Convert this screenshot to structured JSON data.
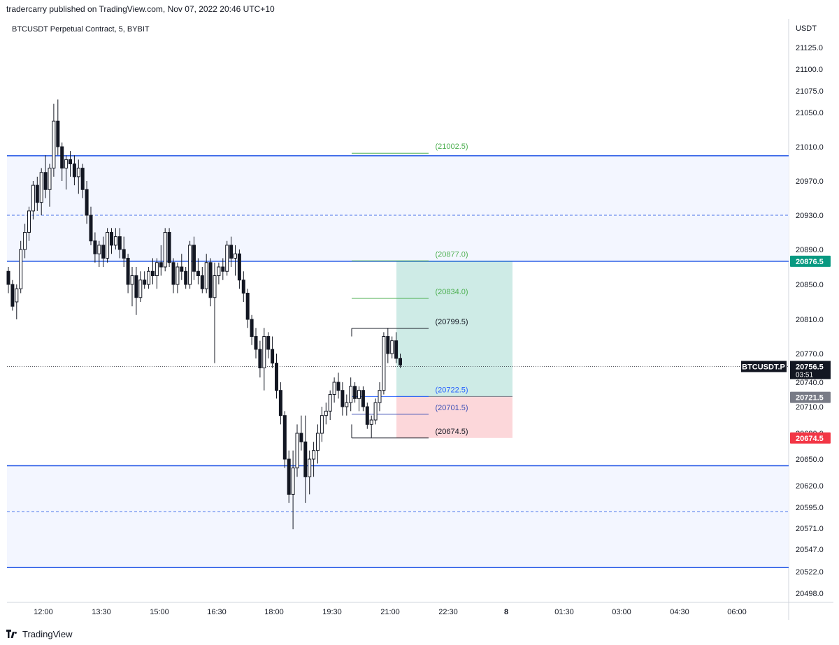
{
  "header": {
    "published": "tradercarry published on TradingView.com, Nov 07, 2022 20:46 UTC+10"
  },
  "footer": {
    "brand": "TradingView"
  },
  "chart_data": {
    "type": "candlestick",
    "title": "BTCUSDT Perpetual Contract, 5, BYBIT",
    "ylabel": "USDT",
    "ylim": [
      20490,
      21145
    ],
    "y_ticks": [
      "21125.0",
      "21100.0",
      "21075.0",
      "21050.0",
      "21010.0",
      "20970.0",
      "20930.0",
      "20890.0",
      "20850.0",
      "20810.0",
      "20770.0",
      "20740.0",
      "20710.0",
      "20680.0",
      "20650.0",
      "20620.0",
      "20595.0",
      "20571.0",
      "20547.0",
      "20522.0",
      "20498.0"
    ],
    "y_tick_values": [
      21125,
      21100,
      21075,
      21050,
      21010,
      20970,
      20930,
      20890,
      20850,
      20810,
      20770,
      20740,
      20710,
      20680,
      20650,
      20620,
      20595,
      20571,
      20547,
      20522,
      20498
    ],
    "x_ticks": [
      "12:00",
      "13:30",
      "15:00",
      "16:30",
      "18:00",
      "19:30",
      "21:00",
      "22:30",
      "8",
      "01:30",
      "03:00",
      "04:30",
      "06:00"
    ],
    "x_tick_bold": "8",
    "current_price": {
      "symbol": "BTCUSDT.P",
      "price": "20756.5",
      "countdown": "03:51",
      "value": 20756.5
    },
    "price_tags": [
      {
        "label": "20876.5",
        "value": 20876.5,
        "color": "#089981"
      },
      {
        "label": "20721.5",
        "value": 20721.5,
        "color": "#787b86"
      },
      {
        "label": "20674.5",
        "value": 20674.5,
        "color": "#f23645"
      }
    ],
    "zones": [
      {
        "top": 20999.5,
        "bottom": 20876.5,
        "mid": 20930,
        "color": "#1e53e5"
      },
      {
        "top": 20642.5,
        "bottom": 20526.5,
        "mid": 20590,
        "color": "#1e53e5"
      }
    ],
    "levels": [
      {
        "label": "(21002.5)",
        "value": 21002.5,
        "color": "#4caf50"
      },
      {
        "label": "(20877.0)",
        "value": 20877.0,
        "color": "#4caf50"
      },
      {
        "label": "(20834.0)",
        "value": 20834.0,
        "color": "#4caf50"
      },
      {
        "label": "(20799.5)",
        "value": 20799.5,
        "color": "#131722"
      },
      {
        "label": "(20722.5)",
        "value": 20722.5,
        "color": "#2962ff"
      },
      {
        "label": "(20701.5)",
        "value": 20701.5,
        "color": "#3f51b5"
      },
      {
        "label": "(20674.5)",
        "value": 20674.5,
        "color": "#131722"
      }
    ],
    "position": {
      "entry": 20722.5,
      "target": 20877.0,
      "stop": 20674.5
    },
    "candles_ohlc": [
      [
        20865,
        20870,
        20840,
        20850
      ],
      [
        20850,
        20855,
        20820,
        20825
      ],
      [
        20830,
        20850,
        20810,
        20845
      ],
      [
        20845,
        20900,
        20840,
        20890
      ],
      [
        20890,
        20920,
        20880,
        20910
      ],
      [
        20910,
        20940,
        20900,
        20935
      ],
      [
        20935,
        20970,
        20925,
        20965
      ],
      [
        20965,
        20975,
        20935,
        20945
      ],
      [
        20945,
        20985,
        20930,
        20980
      ],
      [
        20980,
        21000,
        20950,
        20960
      ],
      [
        20960,
        20990,
        20940,
        20985
      ],
      [
        20985,
        21060,
        20975,
        21040
      ],
      [
        21040,
        21065,
        21000,
        21010
      ],
      [
        21010,
        21015,
        20970,
        20985
      ],
      [
        20985,
        21000,
        20960,
        20995
      ],
      [
        20995,
        21005,
        20975,
        20990
      ],
      [
        20990,
        21000,
        20965,
        20975
      ],
      [
        20975,
        20995,
        20955,
        20985
      ],
      [
        20985,
        20990,
        20950,
        20960
      ],
      [
        20960,
        20970,
        20920,
        20930
      ],
      [
        20930,
        20940,
        20895,
        20900
      ],
      [
        20900,
        20910,
        20875,
        20885
      ],
      [
        20885,
        20900,
        20870,
        20895
      ],
      [
        20895,
        20905,
        20870,
        20880
      ],
      [
        20880,
        20915,
        20875,
        20910
      ],
      [
        20910,
        20915,
        20885,
        20895
      ],
      [
        20895,
        20915,
        20890,
        20905
      ],
      [
        20905,
        20915,
        20880,
        20890
      ],
      [
        20890,
        20905,
        20870,
        20880
      ],
      [
        20880,
        20885,
        20840,
        20850
      ],
      [
        20850,
        20870,
        20825,
        20860
      ],
      [
        20860,
        20870,
        20815,
        20835
      ],
      [
        20835,
        20865,
        20830,
        20855
      ],
      [
        20855,
        20865,
        20845,
        20850
      ],
      [
        20850,
        20870,
        20845,
        20865
      ],
      [
        20865,
        20880,
        20850,
        20860
      ],
      [
        20860,
        20880,
        20845,
        20875
      ],
      [
        20875,
        20895,
        20860,
        20870
      ],
      [
        20870,
        20915,
        20865,
        20910
      ],
      [
        20910,
        20915,
        20870,
        20875
      ],
      [
        20875,
        20880,
        20840,
        20850
      ],
      [
        20850,
        20875,
        20840,
        20870
      ],
      [
        20870,
        20885,
        20855,
        20865
      ],
      [
        20865,
        20870,
        20845,
        20850
      ],
      [
        20850,
        20900,
        20845,
        20895
      ],
      [
        20895,
        20905,
        20855,
        20865
      ],
      [
        20865,
        20880,
        20850,
        20860
      ],
      [
        20860,
        20870,
        20840,
        20845
      ],
      [
        20845,
        20885,
        20840,
        20875
      ],
      [
        20875,
        20880,
        20825,
        20835
      ],
      [
        20835,
        20875,
        20760,
        20860
      ],
      [
        20860,
        20875,
        20850,
        20870
      ],
      [
        20870,
        20880,
        20855,
        20865
      ],
      [
        20865,
        20900,
        20860,
        20895
      ],
      [
        20895,
        20905,
        20870,
        20880
      ],
      [
        20880,
        20895,
        20860,
        20885
      ],
      [
        20885,
        20890,
        20845,
        20855
      ],
      [
        20855,
        20865,
        20830,
        20840
      ],
      [
        20840,
        20845,
        20800,
        20810
      ],
      [
        20810,
        20815,
        20780,
        20790
      ],
      [
        20790,
        20800,
        20765,
        20775
      ],
      [
        20775,
        20785,
        20745,
        20755
      ],
      [
        20755,
        20800,
        20730,
        20790
      ],
      [
        20790,
        20795,
        20765,
        20775
      ],
      [
        20775,
        20790,
        20755,
        20760
      ],
      [
        20760,
        20770,
        20720,
        20730
      ],
      [
        20730,
        20740,
        20690,
        20700
      ],
      [
        20700,
        20705,
        20640,
        20650
      ],
      [
        20650,
        20660,
        20600,
        20610
      ],
      [
        20610,
        20660,
        20570,
        20640
      ],
      [
        20640,
        20690,
        20630,
        20680
      ],
      [
        20680,
        20700,
        20660,
        20670
      ],
      [
        20670,
        20700,
        20600,
        20630
      ],
      [
        20630,
        20660,
        20610,
        20650
      ],
      [
        20650,
        20670,
        20630,
        20660
      ],
      [
        20660,
        20690,
        20645,
        20680
      ],
      [
        20680,
        20710,
        20670,
        20700
      ],
      [
        20700,
        20715,
        20690,
        20705
      ],
      [
        20705,
        20730,
        20695,
        20725
      ],
      [
        20725,
        20745,
        20715,
        20740
      ],
      [
        20740,
        20750,
        20720,
        20730
      ],
      [
        20730,
        20740,
        20700,
        20710
      ],
      [
        20710,
        20725,
        20700,
        20715
      ],
      [
        20715,
        20745,
        20705,
        20735
      ],
      [
        20735,
        20740,
        20715,
        20720
      ],
      [
        20720,
        20735,
        20705,
        20730
      ],
      [
        20730,
        20735,
        20705,
        20710
      ],
      [
        20710,
        20715,
        20685,
        20690
      ],
      [
        20690,
        20700,
        20675,
        20695
      ],
      [
        20695,
        20720,
        20690,
        20715
      ],
      [
        20715,
        20740,
        20705,
        20730
      ],
      [
        20730,
        20795,
        20725,
        20790
      ],
      [
        20790,
        20800,
        20760,
        20770
      ],
      [
        20770,
        20790,
        20765,
        20785
      ],
      [
        20785,
        20795,
        20760,
        20765
      ],
      [
        20765,
        20770,
        20755,
        20758
      ]
    ],
    "candle_first_x": 12,
    "candle_spacing": 5.9
  }
}
